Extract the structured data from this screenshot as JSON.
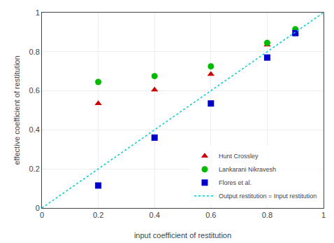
{
  "chart_data": {
    "type": "scatter",
    "xlabel": "input coefficient of restitution",
    "ylabel": "effective coefficient of restitution",
    "xlim": [
      0,
      1
    ],
    "ylim": [
      0,
      1
    ],
    "xticks": [
      0,
      0.2,
      0.4,
      0.6,
      0.8,
      1
    ],
    "yticks": [
      0,
      0.2,
      0.4,
      0.6,
      0.8,
      1
    ],
    "grid": true,
    "legend": "lower right",
    "series": [
      {
        "name": "Hunt Crossley",
        "color": "#cc0000",
        "marker": "triangle-up",
        "x": [
          0.2,
          0.4,
          0.6,
          0.8,
          0.9
        ],
        "values": [
          0.535,
          0.605,
          0.685,
          0.835,
          0.895
        ]
      },
      {
        "name": "Lankarani Nikravesh",
        "color": "#00bb00",
        "marker": "circle",
        "x": [
          0.2,
          0.4,
          0.6,
          0.8,
          0.9
        ],
        "values": [
          0.645,
          0.675,
          0.725,
          0.845,
          0.915
        ]
      },
      {
        "name": "Flores et al.",
        "color": "#0000cc",
        "marker": "square",
        "x": [
          0.2,
          0.4,
          0.6,
          0.8,
          0.9
        ],
        "values": [
          0.115,
          0.36,
          0.535,
          0.77,
          0.895
        ]
      },
      {
        "name": "Output restitution = Input restitution",
        "type": "line",
        "line_style": "dotted",
        "color": "#00cccc",
        "x": [
          0.0,
          1.0
        ],
        "values": [
          0.0,
          1.0
        ]
      }
    ]
  }
}
